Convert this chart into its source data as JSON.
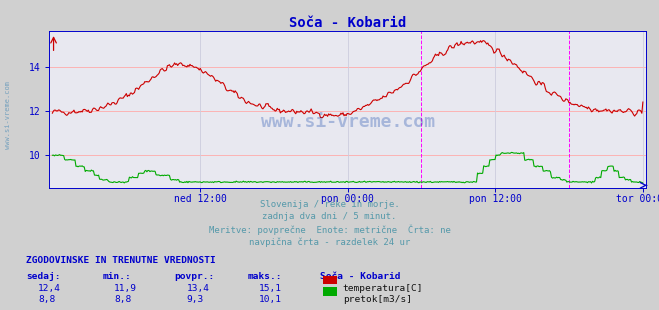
{
  "title": "Soča - Kobarid",
  "bg_color": "#d0d0d0",
  "plot_bg_color": "#e8e8f0",
  "title_color": "#0000cc",
  "grid_color_h": "#ffaaaa",
  "grid_color_v": "#ccccdd",
  "temp_color": "#cc0000",
  "flow_color": "#00aa00",
  "axis_color": "#0000cc",
  "vline_magenta": "#ff00ff",
  "x_ticks_labels": [
    "ned 12:00",
    "pon 00:00",
    "pon 12:00",
    "tor 00:00"
  ],
  "x_ticks_pos": [
    0.25,
    0.5,
    0.75,
    1.0
  ],
  "ylim": [
    8.55,
    15.6
  ],
  "yticks": [
    10,
    12,
    14
  ],
  "n_points": 576,
  "subtitle_lines": [
    "Slovenija / reke in morje.",
    "zadnja dva dni / 5 minut.",
    "Meritve: povprečne  Enote: metrične  Črta: ne",
    "navpična črta - razdelek 24 ur"
  ],
  "subtitle_color": "#5599aa",
  "table_header": "ZGODOVINSKE IN TRENUTNE VREDNOSTI",
  "table_header_color": "#0000cc",
  "col_headers": [
    "sedaj:",
    "min.:",
    "povpr.:",
    "maks.:",
    "Soča - Kobarid"
  ],
  "row1": [
    "12,4",
    "11,9",
    "13,4",
    "15,1"
  ],
  "row2": [
    "8,8",
    "8,8",
    "9,3",
    "10,1"
  ],
  "legend1": "temperatura[C]",
  "legend2": "pretok[m3/s]",
  "watermark": "www.si-vreme.com",
  "watermark_color": "#1144aa",
  "left_text": "www.si-vreme.com",
  "left_text_color": "#6699bb"
}
